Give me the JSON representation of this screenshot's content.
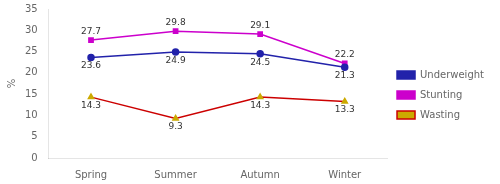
{
  "chart_data": {
    "type": "line",
    "ylabel": "%",
    "categories": [
      "Spring",
      "Summer",
      "Autumn",
      "Winter"
    ],
    "series": [
      {
        "name": "Underweight",
        "color": "#2222aa",
        "marker": "circle",
        "values": [
          23.6,
          24.9,
          24.5,
          21.3
        ]
      },
      {
        "name": "Stunting",
        "color": "#cc00cc",
        "marker": "square",
        "values": [
          27.7,
          29.8,
          29.1,
          22.2
        ]
      },
      {
        "name": "Wasting",
        "color": "#cc0000",
        "colors": [
          "#ccaa00",
          "#ccaa00",
          "#ccaa00",
          "#ccaa00"
        ],
        "marker": "triangle",
        "values": [
          14.3,
          9.3,
          14.3,
          13.3
        ]
      }
    ],
    "ylim": [
      0,
      35
    ],
    "yticks": [
      0,
      5,
      10,
      15,
      20,
      25,
      30,
      35
    ],
    "grid": false,
    "legend": "right",
    "data_labels": true
  }
}
